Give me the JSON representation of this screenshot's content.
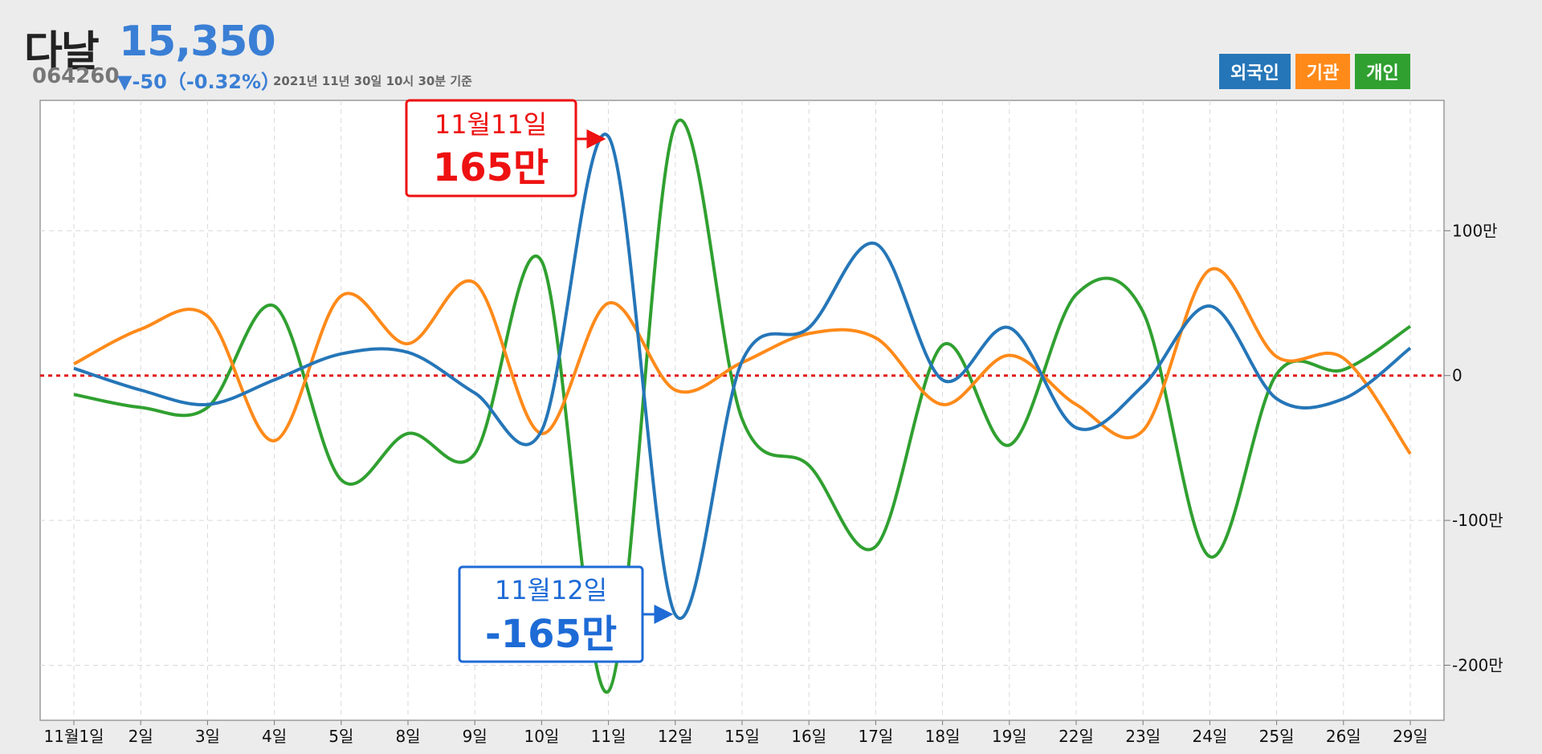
{
  "header": {
    "stock_name": "다날",
    "price": "15,350",
    "code": "064260",
    "change": "▼-50（-0.32%）",
    "as_of": "2021년 11년 30일 10시 30분 기준"
  },
  "colors": {
    "foreign": "#2576b8",
    "institution": "#ff8a1a",
    "individual": "#30a030",
    "up": "#ee1111",
    "down": "#1e6bd6",
    "zero_line": "#e21a1a"
  },
  "callouts": [
    {
      "date": "11월11일",
      "value": "165만",
      "series": "외국인",
      "kind": "max"
    },
    {
      "date": "11월12일",
      "value": "-165만",
      "series": "외국인",
      "kind": "min"
    }
  ],
  "chart_data": {
    "type": "line",
    "categories": [
      "11월1일",
      "2일",
      "3일",
      "4일",
      "5일",
      "8일",
      "9일",
      "10일",
      "11일",
      "12일",
      "15일",
      "16일",
      "17일",
      "18일",
      "19일",
      "22일",
      "23일",
      "24일",
      "25일",
      "26일",
      "29일"
    ],
    "series": [
      {
        "name": "외국인",
        "color": "#2576b8",
        "values": [
          5,
          -10,
          -20,
          -3,
          15,
          16,
          -12,
          -38,
          165,
          -165,
          10,
          33,
          91,
          -3,
          33,
          -36,
          -7,
          48,
          -16,
          -16,
          19
        ]
      },
      {
        "name": "기관",
        "color": "#ff8a1a",
        "values": [
          8,
          32,
          41,
          -45,
          55,
          22,
          64,
          -40,
          50,
          -10,
          9,
          29,
          26,
          -20,
          14,
          -20,
          -38,
          73,
          13,
          12,
          -54
        ]
      },
      {
        "name": "개인",
        "color": "#30a030",
        "values": [
          -13,
          -22,
          -22,
          48,
          -72,
          -40,
          -54,
          79,
          -218,
          173,
          -30,
          -62,
          -118,
          21,
          -48,
          56,
          44,
          -125,
          1,
          4,
          34
        ]
      }
    ],
    "yticks": [
      {
        "value": 100,
        "label": "100만"
      },
      {
        "value": 0,
        "label": "0"
      },
      {
        "value": -100,
        "label": "-100만"
      },
      {
        "value": -200,
        "label": "-200만"
      }
    ],
    "ylim": [
      -238,
      190
    ],
    "grid": true,
    "legend": "top-right"
  }
}
